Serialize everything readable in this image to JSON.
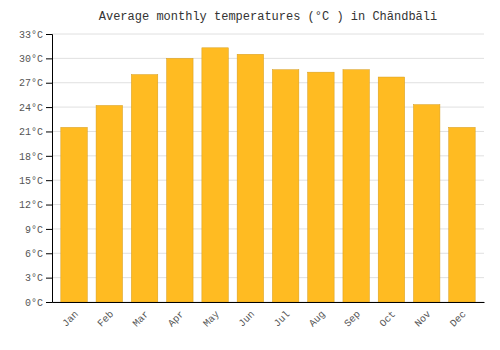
{
  "chart_data": {
    "type": "bar",
    "title": "Average monthly temperatures (°C ) in Chāndbāli",
    "categories": [
      "Jan",
      "Feb",
      "Mar",
      "Apr",
      "May",
      "Jun",
      "Jul",
      "Aug",
      "Sep",
      "Oct",
      "Nov",
      "Dec"
    ],
    "values": [
      21.5,
      24.2,
      28.0,
      30.0,
      31.3,
      30.5,
      28.6,
      28.3,
      28.6,
      27.7,
      24.3,
      21.5
    ],
    "color": "#FFBB22",
    "ylim": [
      0,
      33
    ],
    "yticks": [
      {
        "value": 0,
        "label": "0°C"
      },
      {
        "value": 3,
        "label": "3°C"
      },
      {
        "value": 6,
        "label": "6°C"
      },
      {
        "value": 9,
        "label": "9°C"
      },
      {
        "value": 12,
        "label": "12°C"
      },
      {
        "value": 15,
        "label": "15°C"
      },
      {
        "value": 18,
        "label": "18°C"
      },
      {
        "value": 21,
        "label": "21°C"
      },
      {
        "value": 24,
        "label": "24°C"
      },
      {
        "value": 27,
        "label": "27°C"
      },
      {
        "value": 30,
        "label": "30°C"
      },
      {
        "value": 33,
        "label": "33°C"
      }
    ],
    "grid": true
  }
}
